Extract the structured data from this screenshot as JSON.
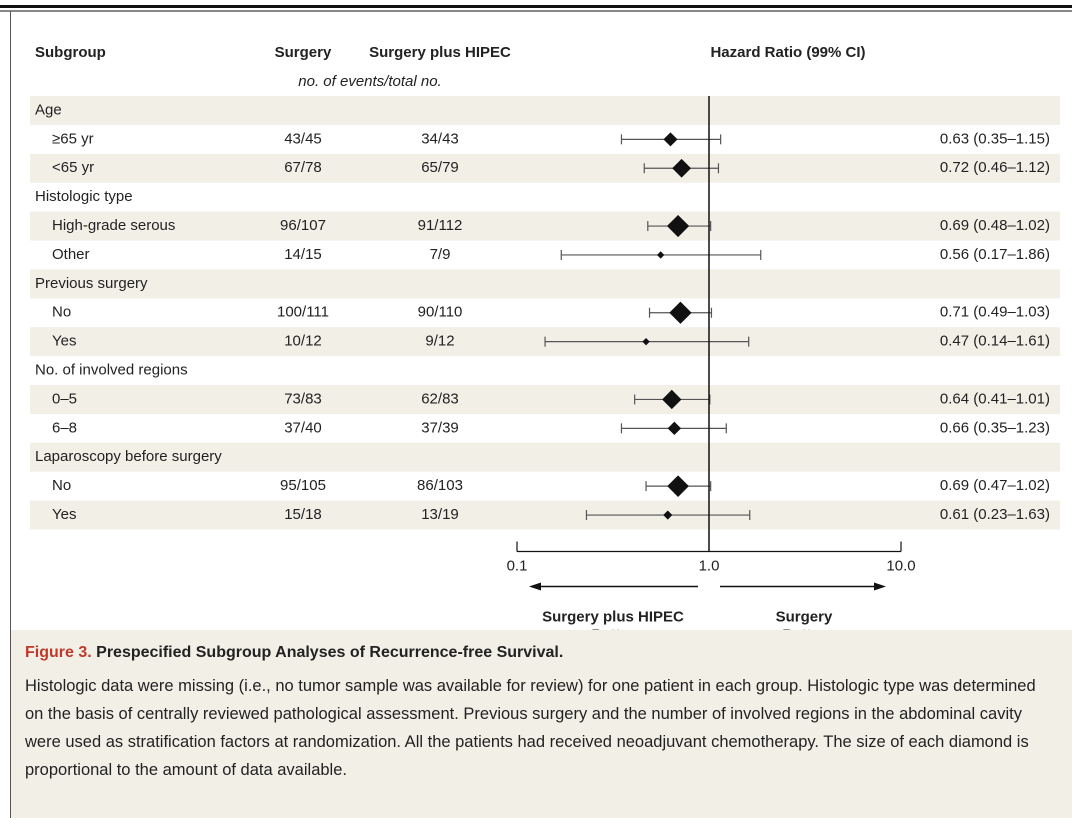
{
  "chart_data": {
    "type": "forest",
    "headers": {
      "subgroup": "Subgroup",
      "surgery": "Surgery",
      "hipec": "Surgery plus HIPEC",
      "hr": "Hazard Ratio (99% CI)",
      "counts_note": "no. of events/total no."
    },
    "groups": [
      {
        "label": "Age",
        "rows": [
          {
            "label": "≥65 yr",
            "surgery": "43/45",
            "hipec": "34/43",
            "hr": 0.63,
            "ci": [
              0.35,
              1.15
            ],
            "hr_label": "0.63 (0.35–1.15)"
          },
          {
            "label": "<65 yr",
            "surgery": "67/78",
            "hipec": "65/79",
            "hr": 0.72,
            "ci": [
              0.46,
              1.12
            ],
            "hr_label": "0.72 (0.46–1.12)"
          }
        ]
      },
      {
        "label": "Histologic type",
        "rows": [
          {
            "label": "High-grade serous",
            "surgery": "96/107",
            "hipec": "91/112",
            "hr": 0.69,
            "ci": [
              0.48,
              1.02
            ],
            "hr_label": "0.69 (0.48–1.02)"
          },
          {
            "label": "Other",
            "surgery": "14/15",
            "hipec": "7/9",
            "hr": 0.56,
            "ci": [
              0.17,
              1.86
            ],
            "hr_label": "0.56 (0.17–1.86)"
          }
        ]
      },
      {
        "label": "Previous surgery",
        "rows": [
          {
            "label": "No",
            "surgery": "100/111",
            "hipec": "90/110",
            "hr": 0.71,
            "ci": [
              0.49,
              1.03
            ],
            "hr_label": "0.71 (0.49–1.03)"
          },
          {
            "label": "Yes",
            "surgery": "10/12",
            "hipec": "9/12",
            "hr": 0.47,
            "ci": [
              0.14,
              1.61
            ],
            "hr_label": "0.47 (0.14–1.61)"
          }
        ]
      },
      {
        "label": "No. of involved regions",
        "rows": [
          {
            "label": "0–5",
            "surgery": "73/83",
            "hipec": "62/83",
            "hr": 0.64,
            "ci": [
              0.41,
              1.01
            ],
            "hr_label": "0.64 (0.41–1.01)"
          },
          {
            "label": "6–8",
            "surgery": "37/40",
            "hipec": "37/39",
            "hr": 0.66,
            "ci": [
              0.35,
              1.23
            ],
            "hr_label": "0.66 (0.35–1.23)"
          }
        ]
      },
      {
        "label": "Laparoscopy before surgery",
        "rows": [
          {
            "label": "No",
            "surgery": "95/105",
            "hipec": "86/103",
            "hr": 0.69,
            "ci": [
              0.47,
              1.02
            ],
            "hr_label": "0.69 (0.47–1.02)"
          },
          {
            "label": "Yes",
            "surgery": "15/18",
            "hipec": "13/19",
            "hr": 0.61,
            "ci": [
              0.23,
              1.63
            ],
            "hr_label": "0.61 (0.23–1.63)"
          }
        ]
      }
    ],
    "xlog": true,
    "xlim": [
      0.1,
      10
    ],
    "xticks": [
      0.1,
      {
        "value": 1,
        "label": "1.0"
      },
      {
        "value": 10,
        "label": "10.0"
      }
    ],
    "left_label": [
      "Surgery plus HIPEC",
      "Better"
    ],
    "right_label": [
      "Surgery",
      "Better"
    ],
    "stripe_color": "#f2efe7",
    "caption": {
      "label": "Figure 3.",
      "title": "Prespecified Subgroup Analyses of Recurrence-free Survival.",
      "text": "Histologic data were missing (i.e., no tumor sample was available for review) for one patient in each group. Histologic type was determined on the basis of centrally reviewed pathological assessment. Previous surgery and the number of involved regions in the abdominal cavity were used as stratification factors at randomization. All the patients had received neoadjuvant chemotherapy. The size of each diamond is proportional to the amount of data available."
    }
  }
}
